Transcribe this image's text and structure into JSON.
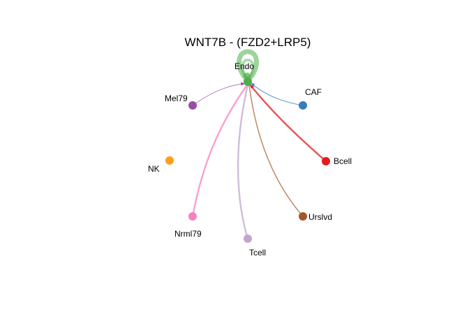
{
  "title": "WNT7B - (FZD2+LRP5)",
  "target": "Endo",
  "nodes": [
    {
      "id": "endo",
      "label": "Endo",
      "color": "#4DAF4A"
    },
    {
      "id": "caf",
      "label": "CAF",
      "color": "#377EB8"
    },
    {
      "id": "bcell",
      "label": "Bcell",
      "color": "#E41A1C"
    },
    {
      "id": "urslvd",
      "label": "Urslvd",
      "color": "#A65628"
    },
    {
      "id": "tcell",
      "label": "Tcell",
      "color": "#C2A5CF"
    },
    {
      "id": "nrml79",
      "label": "Nrml79",
      "color": "#F781BF"
    },
    {
      "id": "nk",
      "label": "NK",
      "color": "#FF9E1B"
    },
    {
      "id": "mel79",
      "label": "Mel79",
      "color": "#984EA3"
    }
  ],
  "edges": [
    {
      "from": "Endo",
      "to": "Endo",
      "color": "#4DAF4A"
    },
    {
      "from": "CAF",
      "to": "Endo",
      "color": "#377EB8"
    },
    {
      "from": "Bcell",
      "to": "Endo",
      "color": "#E41A1C"
    },
    {
      "from": "Urslvd",
      "to": "Endo",
      "color": "#A65628"
    },
    {
      "from": "Tcell",
      "to": "Endo",
      "color": "#C2A5CF"
    },
    {
      "from": "Nrml79",
      "to": "Endo",
      "color": "#F781BF"
    },
    {
      "from": "Mel79",
      "to": "Endo",
      "color": "#984EA3"
    }
  ]
}
